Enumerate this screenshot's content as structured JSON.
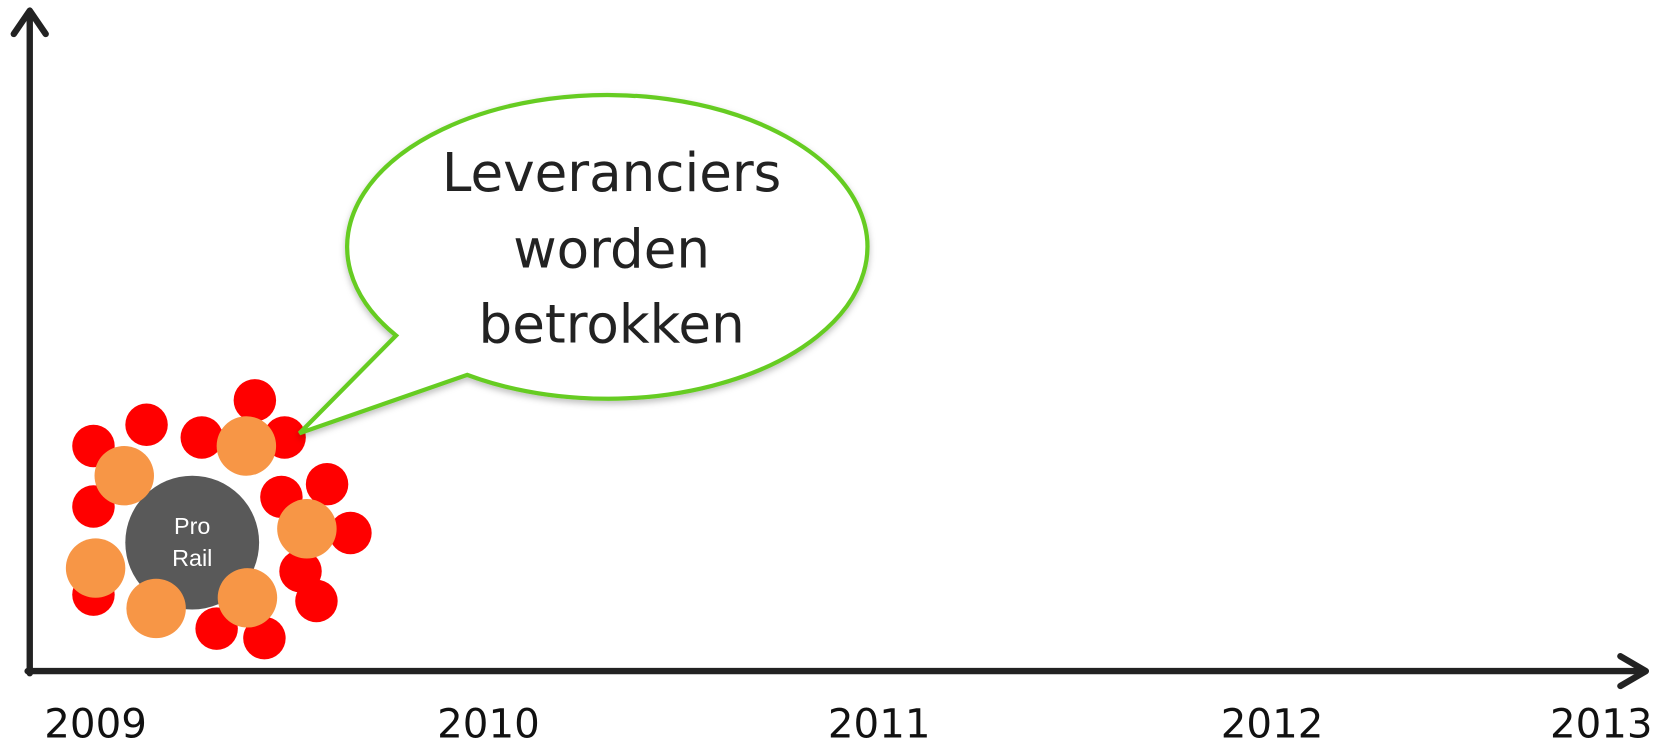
{
  "timeline": {
    "years": [
      "2009",
      "2010",
      "2011",
      "2012",
      "2013"
    ]
  },
  "callout": {
    "lines": [
      "Leveranciers",
      "worden",
      "betrokken"
    ]
  },
  "center": {
    "lines": [
      "Pro",
      "Rail"
    ]
  }
}
